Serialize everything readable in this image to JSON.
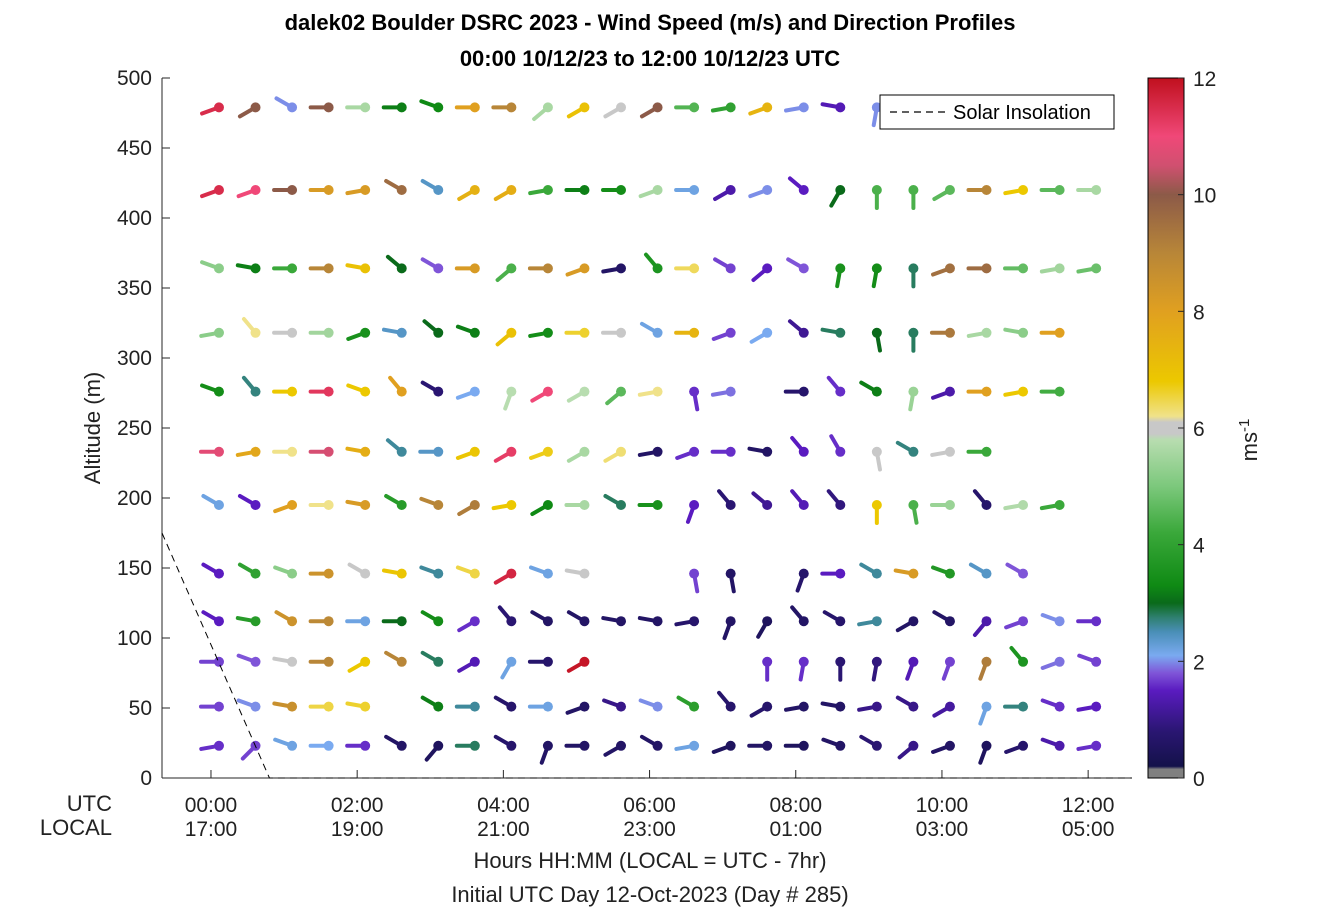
{
  "chart_data": {
    "type": "wind-barb-profile",
    "title": "dalek02 Boulder DSRC 2023 - Wind Speed (m/s) and Direction Profiles",
    "subtitle": "00:00 10/12/23 to 12:00 10/12/23  UTC",
    "ylabel": "Altitude (m)",
    "ylim": [
      0,
      500
    ],
    "yticks": [
      0,
      50,
      100,
      150,
      200,
      250,
      300,
      350,
      400,
      450,
      500
    ],
    "xlim_hours_utc": [
      -0.67,
      12.6
    ],
    "xticks": [
      {
        "hour": 0,
        "utc": "00:00",
        "local": "17:00"
      },
      {
        "hour": 2,
        "utc": "02:00",
        "local": "19:00"
      },
      {
        "hour": 4,
        "utc": "04:00",
        "local": "21:00"
      },
      {
        "hour": 6,
        "utc": "06:00",
        "local": "23:00"
      },
      {
        "hour": 8,
        "utc": "08:00",
        "local": "01:00"
      },
      {
        "hour": 10,
        "utc": "10:00",
        "local": "03:00"
      },
      {
        "hour": 12,
        "utc": "12:00",
        "local": "05:00"
      }
    ],
    "row_label_utc": "UTC",
    "row_label_local": "LOCAL",
    "xlabel": "Hours HH:MM  (LOCAL = UTC - 7hr)",
    "footnote": "Initial UTC Day 12-Oct-2023 (Day # 285)",
    "legend": {
      "label": "Solar Insolation",
      "location": "top-right",
      "line_style": "dashed"
    },
    "solar_insolation_line": [
      [
        -0.67,
        175
      ],
      [
        0.8,
        0
      ],
      [
        12.6,
        0
      ]
    ],
    "colorbar": {
      "label": "ms",
      "label_exponent": "-1",
      "range": [
        0,
        12
      ],
      "ticks": [
        0,
        2,
        4,
        6,
        8,
        10,
        12
      ],
      "stops": [
        {
          "v": 0,
          "color": "#808080"
        },
        {
          "v": 0.15,
          "color": "#808080"
        },
        {
          "v": 0.2,
          "color": "#14124a"
        },
        {
          "v": 0.8,
          "color": "#2a1672"
        },
        {
          "v": 1.5,
          "color": "#5a1bc0"
        },
        {
          "v": 1.8,
          "color": "#7f55d8"
        },
        {
          "v": 2.1,
          "color": "#7aaaf0"
        },
        {
          "v": 2.5,
          "color": "#4a8fb8"
        },
        {
          "v": 2.75,
          "color": "#2f8070"
        },
        {
          "v": 3.0,
          "color": "#0a6a1a"
        },
        {
          "v": 3.3,
          "color": "#0f8a14"
        },
        {
          "v": 4.2,
          "color": "#3aa83a"
        },
        {
          "v": 5.0,
          "color": "#7cc87c"
        },
        {
          "v": 5.8,
          "color": "#b8ddb0"
        },
        {
          "v": 5.9,
          "color": "#c8c8c8"
        },
        {
          "v": 6.1,
          "color": "#c8c8c8"
        },
        {
          "v": 6.2,
          "color": "#f0e28a"
        },
        {
          "v": 6.8,
          "color": "#ecc800"
        },
        {
          "v": 8.0,
          "color": "#e0a020"
        },
        {
          "v": 9.0,
          "color": "#b88638"
        },
        {
          "v": 10.0,
          "color": "#8c5a48"
        },
        {
          "v": 10.5,
          "color": "#d05070"
        },
        {
          "v": 11.0,
          "color": "#f04878"
        },
        {
          "v": 12.0,
          "color": "#c0101e"
        }
      ]
    },
    "altitudes_m": [
      23,
      51,
      83,
      112,
      146,
      195,
      233,
      276,
      318,
      364,
      420,
      479
    ],
    "sample_times_utc_hours": [
      0.0,
      0.5,
      1.0,
      1.5,
      2.0,
      2.5,
      3.0,
      3.5,
      4.0,
      4.5,
      5.0,
      5.5,
      6.0,
      6.5,
      7.0,
      7.5,
      8.0,
      8.5,
      9.0,
      9.5,
      10.0,
      10.5,
      11.0,
      11.5,
      12.0
    ],
    "wind": [
      {
        "altitude_m": 23,
        "speed_ms": [
          1.6,
          1.7,
          2.2,
          2.1,
          1.6,
          0.6,
          0.5,
          2.8,
          0.7,
          0.6,
          0.6,
          0.6,
          0.6,
          2.2,
          0.5,
          0.6,
          0.5,
          0.6,
          0.8,
          1.0,
          0.6,
          0.5,
          0.7,
          1.3,
          1.6
        ],
        "dir_deg": [
          260,
          225,
          290,
          270,
          270,
          300,
          220,
          270,
          300,
          200,
          270,
          240,
          300,
          260,
          250,
          270,
          270,
          290,
          300,
          230,
          250,
          200,
          250,
          290,
          260
        ]
      },
      {
        "altitude_m": 51,
        "speed_ms": [
          1.7,
          2.0,
          8.6,
          6.5,
          6.6,
          null,
          3.2,
          2.6,
          0.7,
          2.2,
          0.6,
          1.0,
          2.0,
          3.9,
          0.7,
          0.7,
          0.6,
          0.6,
          1.0,
          1.0,
          1.2,
          2.2,
          2.7,
          1.6,
          1.5
        ],
        "dir_deg": [
          270,
          290,
          280,
          270,
          280,
          null,
          300,
          270,
          300,
          270,
          250,
          290,
          290,
          300,
          320,
          240,
          260,
          280,
          260,
          300,
          240,
          200,
          270,
          290,
          260
        ]
      },
      {
        "altitude_m": 83,
        "speed_ms": [
          1.7,
          1.8,
          6.0,
          9.0,
          6.8,
          9.0,
          2.8,
          1.4,
          2.2,
          0.7,
          11.9,
          null,
          null,
          null,
          null,
          1.6,
          1.6,
          0.8,
          0.9,
          1.4,
          1.7,
          9.2,
          3.6,
          1.9,
          1.7
        ],
        "dir_deg": [
          270,
          290,
          280,
          270,
          240,
          300,
          300,
          240,
          210,
          270,
          240,
          null,
          null,
          null,
          null,
          180,
          190,
          180,
          190,
          200,
          200,
          200,
          320,
          250,
          290
        ]
      },
      {
        "altitude_m": 112,
        "speed_ms": [
          1.5,
          3.8,
          8.5,
          8.9,
          2.2,
          3.0,
          3.4,
          1.6,
          0.8,
          0.6,
          0.6,
          0.6,
          0.6,
          0.7,
          0.6,
          0.5,
          0.6,
          0.7,
          2.6,
          0.6,
          0.6,
          1.3,
          1.7,
          2.0,
          1.6
        ],
        "dir_deg": [
          300,
          280,
          300,
          270,
          270,
          270,
          300,
          240,
          320,
          300,
          300,
          280,
          280,
          260,
          200,
          210,
          320,
          300,
          260,
          240,
          300,
          220,
          250,
          290,
          270
        ]
      },
      {
        "altitude_m": 146,
        "speed_ms": [
          1.5,
          4.0,
          5.2,
          8.5,
          5.9,
          6.9,
          2.6,
          6.5,
          11.6,
          2.2,
          6.0,
          null,
          null,
          1.7,
          0.6,
          null,
          0.7,
          1.5,
          2.6,
          8.2,
          3.7,
          2.4,
          1.8,
          null,
          null
        ],
        "dir_deg": [
          300,
          300,
          290,
          270,
          300,
          280,
          290,
          290,
          240,
          290,
          280,
          null,
          null,
          170,
          170,
          null,
          200,
          270,
          300,
          280,
          290,
          300,
          300,
          null,
          null
        ]
      },
      {
        "altitude_m": 195,
        "speed_ms": [
          2.2,
          1.5,
          8.0,
          6.2,
          8.2,
          3.8,
          9.0,
          9.2,
          6.8,
          3.3,
          5.6,
          2.8,
          3.5,
          1.5,
          0.8,
          1.1,
          1.4,
          0.9,
          6.8,
          4.4,
          5.4,
          0.7,
          5.7,
          4.2,
          null
        ],
        "dir_deg": [
          300,
          300,
          250,
          270,
          280,
          300,
          290,
          240,
          260,
          240,
          270,
          300,
          270,
          200,
          320,
          310,
          320,
          320,
          180,
          170,
          270,
          320,
          260,
          260,
          null
        ]
      },
      {
        "altitude_m": 233,
        "speed_ms": [
          10.8,
          7.8,
          6.2,
          10.6,
          7.6,
          2.6,
          2.4,
          6.9,
          11.2,
          6.7,
          5.6,
          6.3,
          0.6,
          1.6,
          1.6,
          0.6,
          1.5,
          1.6,
          5.9,
          2.7,
          5.9,
          4.2,
          null,
          null,
          null
        ],
        "dir_deg": [
          270,
          260,
          270,
          270,
          280,
          310,
          270,
          250,
          240,
          250,
          240,
          240,
          260,
          250,
          270,
          280,
          320,
          330,
          170,
          300,
          260,
          270,
          null,
          null,
          null
        ]
      },
      {
        "altitude_m": 276,
        "speed_ms": [
          3.4,
          2.7,
          6.8,
          11.3,
          6.8,
          8.0,
          0.8,
          2.1,
          5.8,
          11.0,
          5.8,
          4.6,
          6.2,
          1.6,
          1.9,
          null,
          0.7,
          1.6,
          3.2,
          5.4,
          1.3,
          8.0,
          6.8,
          4.3,
          null
        ],
        "dir_deg": [
          290,
          320,
          270,
          270,
          290,
          320,
          300,
          250,
          200,
          240,
          240,
          230,
          260,
          170,
          260,
          null,
          270,
          320,
          300,
          190,
          250,
          270,
          260,
          270,
          null
        ]
      },
      {
        "altitude_m": 318,
        "speed_ms": [
          5.2,
          6.2,
          5.9,
          5.5,
          3.5,
          2.4,
          3.0,
          3.2,
          7.0,
          3.4,
          6.6,
          6.0,
          2.2,
          7.4,
          1.7,
          2.1,
          1.1,
          2.8,
          3.0,
          2.8,
          9.3,
          5.6,
          5.2,
          8.0,
          null
        ],
        "dir_deg": [
          260,
          320,
          270,
          270,
          250,
          280,
          310,
          290,
          230,
          260,
          270,
          270,
          300,
          270,
          250,
          240,
          310,
          280,
          170,
          180,
          270,
          260,
          280,
          270,
          null
        ]
      },
      {
        "altitude_m": 364,
        "speed_ms": [
          5.2,
          3.2,
          4.2,
          9.0,
          7.0,
          3.0,
          1.8,
          8.2,
          4.4,
          9.0,
          8.2,
          0.6,
          3.6,
          6.4,
          1.7,
          1.5,
          1.8,
          3.5,
          3.4,
          2.8,
          9.5,
          9.6,
          4.7,
          5.5,
          4.8
        ],
        "dir_deg": [
          290,
          280,
          270,
          270,
          280,
          310,
          300,
          270,
          230,
          270,
          250,
          260,
          320,
          270,
          300,
          230,
          300,
          190,
          190,
          180,
          250,
          270,
          270,
          260,
          260
        ]
      },
      {
        "altitude_m": 420,
        "speed_ms": [
          11.5,
          11.0,
          10.0,
          8.2,
          8.2,
          9.6,
          2.4,
          7.5,
          7.6,
          4.2,
          3.2,
          3.4,
          5.6,
          2.2,
          1.3,
          2.0,
          1.5,
          3.0,
          4.4,
          4.4,
          4.6,
          9.0,
          6.8,
          4.6,
          5.6
        ],
        "dir_deg": [
          250,
          250,
          270,
          270,
          260,
          300,
          300,
          240,
          240,
          260,
          270,
          270,
          250,
          270,
          240,
          250,
          310,
          210,
          180,
          180,
          240,
          270,
          260,
          270,
          270
        ]
      },
      {
        "altitude_m": 479,
        "speed_ms": [
          11.5,
          10.0,
          2.0,
          10.0,
          5.6,
          3.2,
          3.3,
          8.0,
          9.0,
          5.6,
          7.0,
          6.0,
          10.0,
          4.5,
          4.0,
          7.4,
          2.0,
          1.4,
          2.0,
          null,
          null,
          null,
          null,
          null,
          null
        ],
        "dir_deg": [
          250,
          240,
          300,
          270,
          270,
          270,
          290,
          270,
          270,
          230,
          240,
          240,
          240,
          270,
          260,
          250,
          260,
          280,
          190,
          null,
          null,
          null,
          null,
          null,
          null
        ]
      }
    ]
  }
}
